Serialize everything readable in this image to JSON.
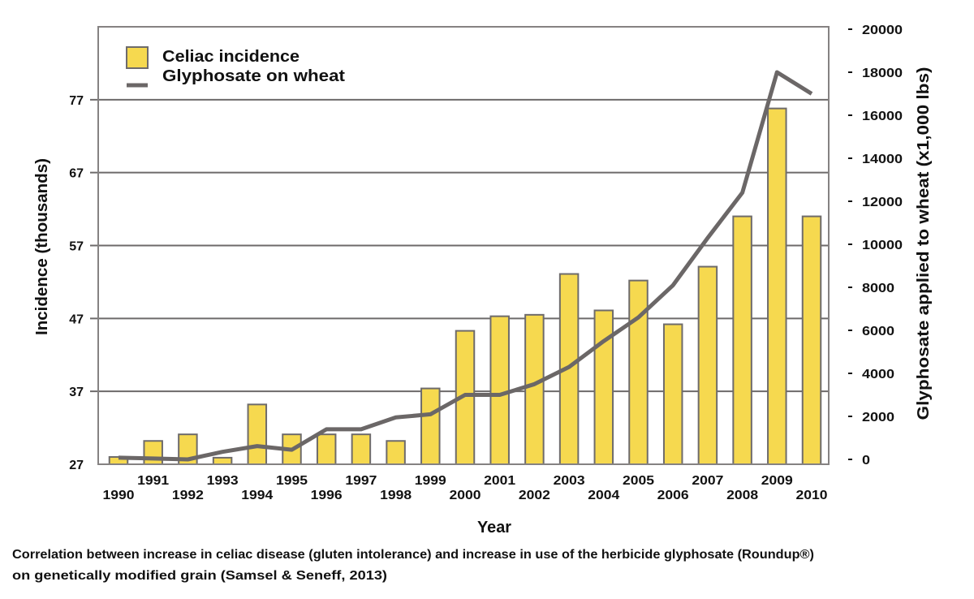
{
  "chart_data": {
    "type": "bar",
    "title": "",
    "xlabel": "Year",
    "ylabel": "Incidence (thousands)",
    "y2label": "Glyphosate applied to wheat (x1,000 lbs)",
    "categories": [
      "1990",
      "1991",
      "1992",
      "1993",
      "1994",
      "1995",
      "1996",
      "1997",
      "1998",
      "1999",
      "2000",
      "2001",
      "2002",
      "2003",
      "2004",
      "2005",
      "2006",
      "2007",
      "2008",
      "2009",
      "2010"
    ],
    "series": [
      {
        "name": "Celiac incidence",
        "type": "bar",
        "values": [
          28,
          30.2,
          31.1,
          27.9,
          35.2,
          31.1,
          31.1,
          31.1,
          30.2,
          37.4,
          45.3,
          47.3,
          47.5,
          53.1,
          48.1,
          52.2,
          46.2,
          54.1,
          61,
          75.8,
          61
        ]
      },
      {
        "name": "Glyphosate on wheat",
        "type": "line",
        "values": [
          80,
          40,
          0,
          350,
          620,
          450,
          1400,
          1400,
          1950,
          2100,
          3000,
          3000,
          3500,
          4300,
          5500,
          6600,
          8100,
          10300,
          12400,
          18000,
          17000
        ]
      }
    ],
    "ylim": [
      27,
      87
    ],
    "yticks": [
      27,
      37,
      47,
      57,
      67,
      77
    ],
    "y2lim": [
      0,
      20000
    ],
    "y2ticks": [
      0,
      2000,
      4000,
      6000,
      8000,
      10000,
      12000,
      14000,
      16000,
      18000,
      20000
    ],
    "grid": true,
    "legend": {
      "position": "top-left"
    },
    "caption": [
      "Correlation between increase in celiac disease (gluten intolerance) and increase in use of the herbicide glyphosate (Roundup®)",
      "on genetically modified grain (Samsel & Seneff, 2013)"
    ]
  },
  "colors": {
    "bar_fill": "#F6D94F",
    "bar_stroke": "#6E6B6B",
    "line": "#6B6767",
    "grid": "#6D6A6A",
    "frame": "#858282",
    "tick": "#111111"
  }
}
